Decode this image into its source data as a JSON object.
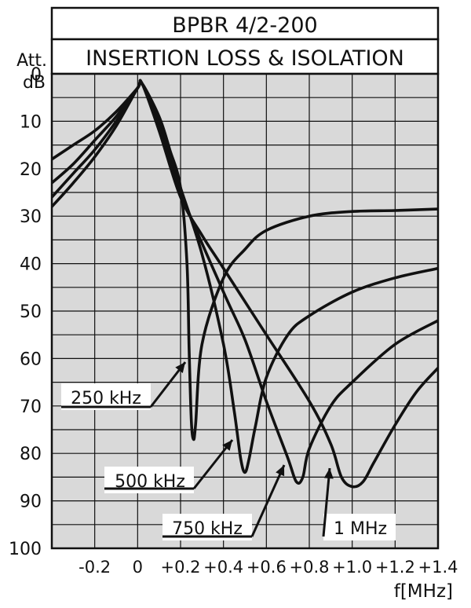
{
  "chart_data": {
    "type": "line",
    "title": "BPBR 4/2-200",
    "subtitle": "INSERTION LOSS & ISOLATION",
    "ylabel": [
      "Att.",
      "dB"
    ],
    "xlabel": "f[MHz]",
    "xlim": [
      -0.4,
      1.4
    ],
    "ylim": [
      0,
      100
    ],
    "y_inverted": true,
    "grid": true,
    "x_ticks": [
      {
        "value": -0.2,
        "label": "-0.2"
      },
      {
        "value": 0,
        "label": "0"
      },
      {
        "value": 0.2,
        "label": "+0.2"
      },
      {
        "value": 0.4,
        "label": "+0.4"
      },
      {
        "value": 0.6,
        "label": "+0.6"
      },
      {
        "value": 0.8,
        "label": "+0.8"
      },
      {
        "value": 1.0,
        "label": "+1.0"
      },
      {
        "value": 1.2,
        "label": "+1.2"
      },
      {
        "value": 1.4,
        "label": "+1.4"
      }
    ],
    "y_ticks": [
      {
        "value": 0,
        "label": "0"
      },
      {
        "value": 10,
        "label": "10"
      },
      {
        "value": 20,
        "label": "20"
      },
      {
        "value": 30,
        "label": "30"
      },
      {
        "value": 40,
        "label": "40"
      },
      {
        "value": 50,
        "label": "50"
      },
      {
        "value": 60,
        "label": "60"
      },
      {
        "value": 70,
        "label": "70"
      },
      {
        "value": 80,
        "label": "80"
      },
      {
        "value": 90,
        "label": "90"
      },
      {
        "value": 100,
        "label": "100"
      }
    ],
    "series": [
      {
        "name": "250 kHz",
        "x": [
          -0.4,
          -0.3,
          -0.2,
          -0.1,
          0.0,
          0.02,
          0.1,
          0.15,
          0.2,
          0.23,
          0.24,
          0.25,
          0.26,
          0.27,
          0.3,
          0.4,
          0.5,
          0.6,
          0.8,
          1.0,
          1.2,
          1.4
        ],
        "y": [
          28,
          23,
          17.5,
          11,
          3,
          2,
          9,
          16,
          24,
          40,
          58,
          73,
          77,
          74,
          57,
          43,
          37,
          33,
          30,
          29,
          28.8,
          28.5
        ]
      },
      {
        "name": "500 kHz",
        "x": [
          -0.4,
          -0.3,
          -0.2,
          -0.1,
          0.0,
          0.02,
          0.1,
          0.2,
          0.3,
          0.4,
          0.45,
          0.48,
          0.5,
          0.52,
          0.55,
          0.6,
          0.7,
          0.8,
          1.0,
          1.2,
          1.4
        ],
        "y": [
          26,
          21,
          16,
          10,
          3,
          2,
          10,
          24,
          38,
          57,
          71,
          81,
          84,
          81,
          74,
          64,
          55,
          51,
          46,
          43,
          41
        ]
      },
      {
        "name": "750 kHz",
        "x": [
          -0.4,
          -0.3,
          -0.2,
          -0.1,
          0.0,
          0.02,
          0.1,
          0.2,
          0.4,
          0.5,
          0.6,
          0.7,
          0.74,
          0.77,
          0.8,
          0.9,
          1.0,
          1.2,
          1.4
        ],
        "y": [
          23,
          19,
          14,
          9,
          3,
          2,
          11,
          25,
          46,
          56,
          69,
          81,
          86,
          85,
          79,
          70,
          65,
          57,
          52
        ]
      },
      {
        "name": "1 MHz",
        "x": [
          -0.4,
          -0.3,
          -0.2,
          -0.1,
          0.0,
          0.02,
          0.1,
          0.2,
          0.3,
          0.4,
          0.6,
          0.8,
          0.9,
          0.95,
          1.0,
          1.05,
          1.1,
          1.2,
          1.3,
          1.4
        ],
        "y": [
          18,
          15,
          12,
          8,
          3,
          2,
          12,
          26,
          34,
          41,
          55,
          69,
          78,
          85,
          87,
          86,
          82,
          74,
          67,
          62
        ]
      }
    ],
    "annotations": [
      {
        "text": "250 kHz",
        "series": "250 kHz"
      },
      {
        "text": "500 kHz",
        "series": "500 kHz"
      },
      {
        "text": "750 kHz",
        "series": "750 kHz"
      },
      {
        "text": "1 MHz",
        "series": "1 MHz"
      }
    ],
    "colors": {
      "line": "#111111",
      "grid": "#111111",
      "plot_bg": "#d9d9d9",
      "header_bg": "#ffffff"
    }
  }
}
